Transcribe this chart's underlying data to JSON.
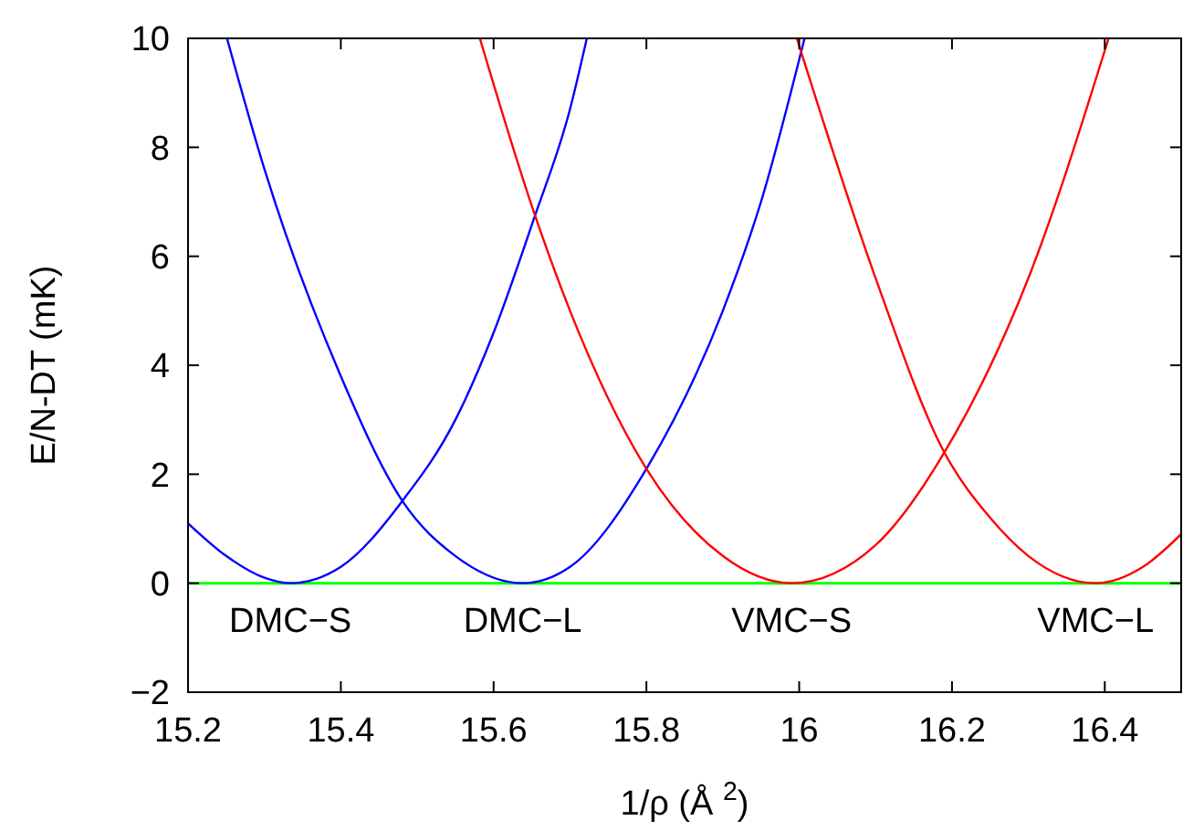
{
  "chart_data": {
    "type": "line",
    "xlabel": "1/ρ (Å $^{2}$)",
    "ylabel": "E/N-DT (mK)",
    "xlim": [
      15.2,
      16.5
    ],
    "xticks": [
      15.2,
      15.4,
      15.6,
      15.8,
      16,
      16.2,
      16.4
    ],
    "ylim": [
      -2,
      10
    ],
    "yticks": [
      {
        "value": -2,
        "label": "−2"
      },
      0,
      2,
      4,
      6,
      8,
      10
    ],
    "grid": false,
    "marker": "none",
    "line_style": "solid",
    "series": [
      {
        "name": "DMC−S",
        "color": "#0000ff",
        "x": [
          15.2,
          15.25,
          15.3,
          15.334,
          15.4,
          15.48,
          15.55,
          15.6,
          15.653,
          15.7,
          15.722
        ],
        "values": [
          1.1,
          0.5,
          0.1,
          0,
          0.3,
          1.5,
          3.0,
          4.6,
          6.7,
          8.7,
          10
        ]
      },
      {
        "name": "DMC−L",
        "color": "#0000ff",
        "x": [
          15.251,
          15.3,
          15.4,
          15.481,
          15.55,
          15.638,
          15.7,
          15.8,
          15.9,
          15.95,
          16.007
        ],
        "values": [
          10,
          7.6,
          3.8,
          1.5,
          0.5,
          0,
          0.3,
          2.1,
          5.0,
          7.0,
          10
        ]
      },
      {
        "name": "VMC−S",
        "color": "#ff0000",
        "x": [
          15.582,
          15.653,
          15.7,
          15.8,
          15.9,
          15.99,
          16.1,
          16.19,
          16.3,
          16.405
        ],
        "values": [
          10,
          6.8,
          5.0,
          2.1,
          0.5,
          0,
          0.7,
          2.4,
          5.6,
          10
        ]
      },
      {
        "name": "VMC−L",
        "color": "#ff0000",
        "x": [
          15.997,
          16.1,
          16.19,
          16.25,
          16.3,
          16.388,
          16.45,
          16.5
        ],
        "values": [
          10,
          5.6,
          2.4,
          1.2,
          0.5,
          0,
          0.3,
          0.9
        ]
      }
    ],
    "ref_lines": [
      {
        "axis": "y",
        "value": 0,
        "color": "#00ff00"
      }
    ]
  }
}
